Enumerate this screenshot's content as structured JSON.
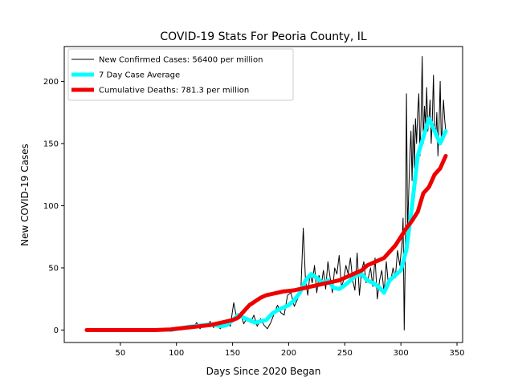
{
  "chart_data": {
    "type": "line",
    "title": "COVID-19 Stats For Peoria County, IL",
    "xlabel": "Days Since 2020 Began",
    "ylabel": "New COVID-19 Cases",
    "xlim": [
      0,
      355
    ],
    "ylim": [
      -10,
      228
    ],
    "x_ticks": [
      50,
      100,
      150,
      200,
      250,
      300,
      350
    ],
    "y_ticks": [
      0,
      50,
      100,
      150,
      200
    ],
    "grid": false,
    "legend_position": "top-left",
    "series": [
      {
        "name": "New Confirmed Cases: 56400 per million",
        "color": "#000000",
        "style": "thin",
        "x": [
          20,
          30,
          40,
          50,
          60,
          70,
          80,
          90,
          95,
          100,
          103,
          106,
          109,
          112,
          115,
          118,
          121,
          124,
          127,
          130,
          133,
          136,
          139,
          142,
          145,
          148,
          151,
          154,
          157,
          160,
          163,
          166,
          169,
          172,
          175,
          178,
          181,
          184,
          187,
          190,
          193,
          196,
          199,
          202,
          205,
          208,
          211,
          213,
          215,
          217,
          219,
          221,
          223,
          225,
          227,
          229,
          231,
          233,
          235,
          237,
          239,
          241,
          243,
          245,
          247,
          249,
          251,
          253,
          255,
          257,
          259,
          261,
          263,
          265,
          267,
          269,
          271,
          273,
          275,
          277,
          279,
          281,
          283,
          285,
          287,
          289,
          291,
          293,
          295,
          297,
          299,
          301,
          302,
          303,
          304,
          305,
          306,
          307,
          308,
          309,
          310,
          311,
          312,
          313,
          314,
          315,
          316,
          317,
          318,
          319,
          320,
          321,
          322,
          323,
          324,
          325,
          326,
          327,
          328,
          329,
          330,
          331,
          332,
          333,
          334,
          335,
          336,
          337,
          338,
          339,
          340
        ],
        "values": [
          0,
          0,
          0,
          0,
          0,
          0,
          0,
          0,
          0,
          2,
          0,
          3,
          1,
          4,
          2,
          6,
          1,
          5,
          3,
          7,
          2,
          5,
          1,
          4,
          6,
          3,
          22,
          8,
          14,
          5,
          10,
          6,
          12,
          3,
          9,
          4,
          1,
          6,
          13,
          20,
          14,
          12,
          28,
          30,
          19,
          25,
          35,
          82,
          40,
          28,
          45,
          38,
          52,
          30,
          44,
          36,
          48,
          33,
          55,
          42,
          30,
          50,
          45,
          60,
          35,
          40,
          52,
          45,
          58,
          40,
          32,
          62,
          28,
          48,
          55,
          38,
          42,
          50,
          35,
          58,
          25,
          40,
          48,
          30,
          55,
          35,
          40,
          50,
          42,
          64,
          52,
          70,
          90,
          0,
          60,
          190,
          80,
          110,
          140,
          160,
          120,
          165,
          130,
          170,
          150,
          175,
          190,
          140,
          170,
          220,
          150,
          180,
          165,
          195,
          160,
          170,
          185,
          150,
          170,
          205,
          160,
          155,
          175,
          140,
          165,
          200,
          150,
          165,
          185,
          170,
          160
        ]
      },
      {
        "name": "7 Day Case Average",
        "color": "#00ffff",
        "style": "thick",
        "x": [
          95,
          100,
          105,
          110,
          115,
          120,
          125,
          130,
          135,
          140,
          145,
          150,
          155,
          160,
          165,
          170,
          175,
          180,
          185,
          190,
          195,
          200,
          205,
          210,
          215,
          220,
          225,
          230,
          235,
          240,
          245,
          250,
          255,
          260,
          265,
          270,
          275,
          280,
          285,
          290,
          295,
          300,
          305,
          310,
          315,
          320,
          325,
          330,
          335,
          340
        ],
        "values": [
          0,
          1,
          1.5,
          2.5,
          3,
          3.5,
          4,
          4.5,
          4,
          3,
          4,
          8,
          12,
          10,
          8,
          6,
          7,
          8,
          13,
          16,
          18,
          20,
          24,
          30,
          40,
          45,
          42,
          38,
          40,
          34,
          33,
          36,
          40,
          44,
          45,
          40,
          38,
          35,
          30,
          40,
          44,
          48,
          65,
          100,
          140,
          155,
          170,
          160,
          150,
          160
        ]
      },
      {
        "name": "Cumulative Deaths: 781.3 per million",
        "color": "#ee0000",
        "style": "thick",
        "x": [
          20,
          40,
          60,
          80,
          95,
          100,
          110,
          120,
          130,
          140,
          150,
          155,
          160,
          165,
          170,
          175,
          180,
          185,
          190,
          195,
          200,
          205,
          210,
          215,
          220,
          225,
          230,
          235,
          240,
          245,
          250,
          255,
          260,
          265,
          270,
          275,
          280,
          285,
          290,
          295,
          300,
          305,
          310,
          315,
          320,
          325,
          330,
          335,
          340
        ],
        "values": [
          0,
          0,
          0,
          0,
          0.5,
          1,
          2,
          3,
          4,
          6,
          8,
          10,
          15,
          20,
          23,
          26,
          28,
          29,
          30,
          31,
          31.5,
          32,
          33,
          34,
          35,
          36,
          37,
          38,
          39,
          40,
          42,
          44,
          46,
          48,
          52,
          54,
          56,
          58,
          63,
          68,
          75,
          82,
          88,
          95,
          110,
          115,
          125,
          130,
          140
        ]
      }
    ]
  }
}
